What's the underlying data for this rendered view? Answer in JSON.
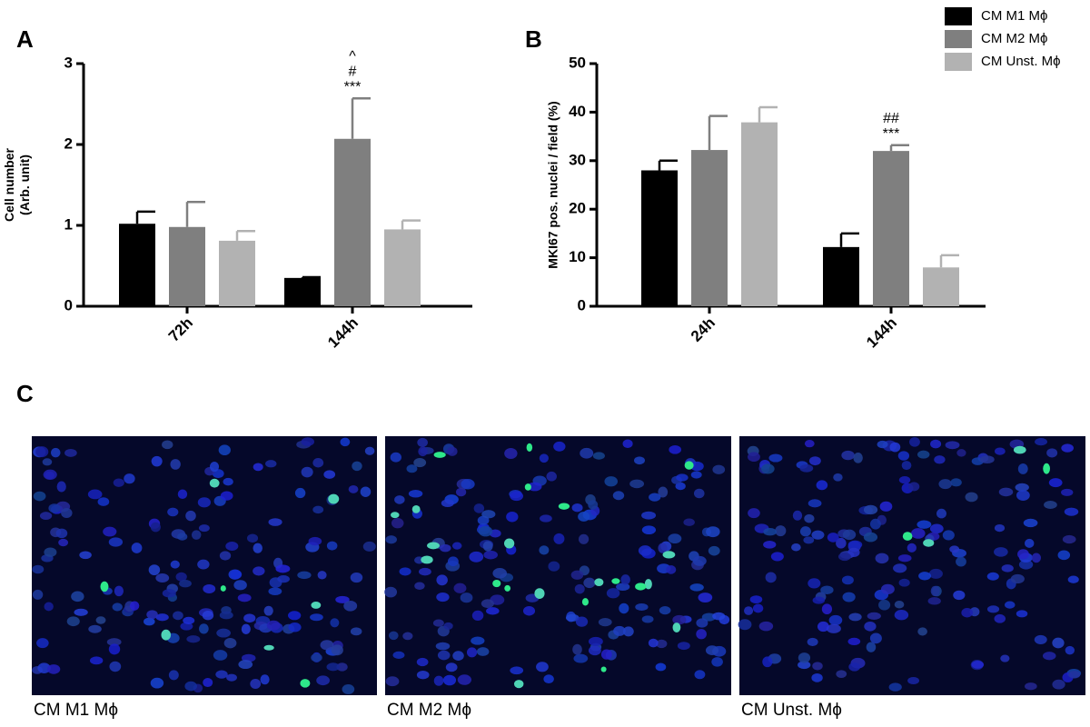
{
  "panels": [
    "A",
    "B",
    "C"
  ],
  "chart_data": [
    {
      "type": "bar",
      "ylabel": [
        "Cell number",
        "(Arb. unit)"
      ],
      "categories": [
        "72h",
        "144h"
      ],
      "ylim": [
        0,
        3
      ],
      "yticks": [
        0,
        1,
        2,
        3
      ],
      "series": [
        {
          "color": "#000000",
          "values": [
            1.02,
            0.35
          ],
          "error": [
            0.15,
            0.01
          ],
          "annotations": [
            null,
            null
          ]
        },
        {
          "color": "#7f7f7f",
          "values": [
            0.98,
            2.07
          ],
          "error": [
            0.31,
            0.5
          ],
          "annotations": [
            null,
            [
              "^",
              "#",
              "***"
            ]
          ]
        },
        {
          "color": "#b2b2b2",
          "values": [
            0.81,
            0.95
          ],
          "error": [
            0.12,
            0.11
          ],
          "annotations": [
            null,
            null
          ]
        }
      ]
    },
    {
      "type": "bar",
      "ylabel": [
        "MKI67 pos. nuclei / field (%)"
      ],
      "categories": [
        "24h",
        "144h"
      ],
      "ylim": [
        0,
        50
      ],
      "yticks": [
        0,
        10,
        20,
        30,
        40,
        50
      ],
      "legend": "top-right",
      "series": [
        {
          "name": "CM M1 Mϕ",
          "color": "#000000",
          "values": [
            28,
            12.2
          ],
          "error": [
            2,
            2.8
          ],
          "annotations": [
            null,
            null
          ]
        },
        {
          "name": "CM M2 Mϕ",
          "color": "#7f7f7f",
          "values": [
            32.2,
            32
          ],
          "error": [
            7,
            1.2
          ],
          "annotations": [
            null,
            [
              "##",
              "***"
            ]
          ]
        },
        {
          "name": "CM Unst. Mϕ",
          "color": "#b2b2b2",
          "values": [
            37.9,
            8
          ],
          "error": [
            3.1,
            2.5
          ],
          "annotations": [
            null,
            null
          ]
        }
      ]
    }
  ],
  "images": [
    {
      "caption": "CM M1 Mϕ"
    },
    {
      "caption": "CM M2 Mϕ"
    },
    {
      "caption": "CM Unst. Mϕ"
    }
  ]
}
